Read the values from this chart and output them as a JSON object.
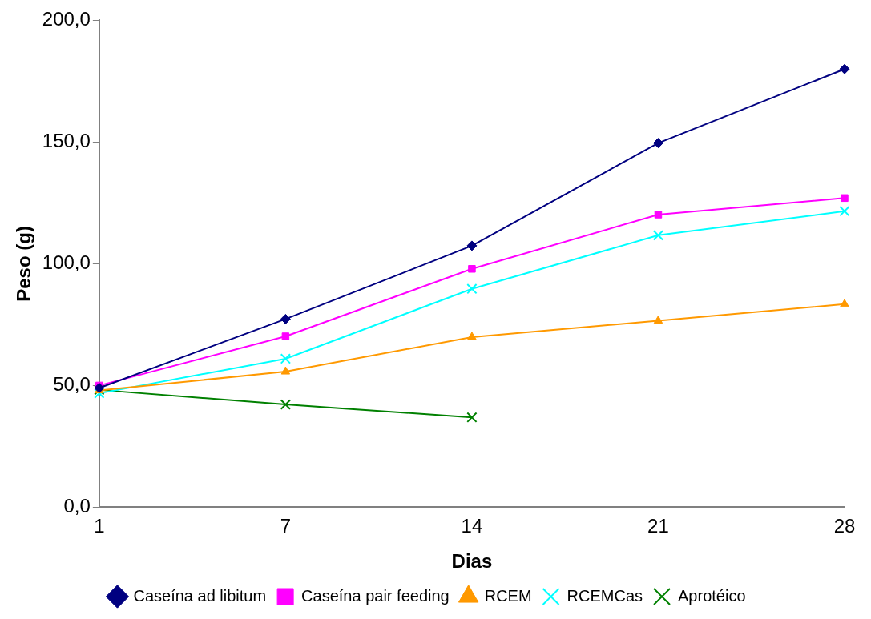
{
  "chart_data": {
    "type": "line",
    "xlabel": "Dias",
    "ylabel": "Peso (g)",
    "categories": [
      "1",
      "7",
      "14",
      "21",
      "28"
    ],
    "series": [
      {
        "name": "Caseína ad libitum",
        "color": "#000080",
        "marker": "diamond",
        "values": [
          49,
          77.3,
          107.4,
          149.6,
          180
        ]
      },
      {
        "name": "Caseína pair feeding",
        "color": "#ff00ff",
        "marker": "square",
        "values": [
          50,
          70.2,
          97.9,
          120.2,
          127
        ]
      },
      {
        "name": "RCEM",
        "color": "#ff9900",
        "marker": "triangle",
        "values": [
          48,
          55.7,
          69.9,
          76.6,
          83.4
        ]
      },
      {
        "name": "RCEMCas",
        "color": "#00ffff",
        "marker": "cross",
        "values": [
          46.8,
          61,
          89.7,
          111.7,
          121.6
        ]
      },
      {
        "name": "Aprotéico",
        "color": "#008000",
        "marker": "cross",
        "values": [
          48.2,
          42.2,
          36.9,
          null,
          null
        ]
      }
    ],
    "ylim": [
      0,
      200
    ],
    "yticks": [
      {
        "value": 0,
        "label": "0,0"
      },
      {
        "value": 50,
        "label": "50,0"
      },
      {
        "value": 100,
        "label": "100,0"
      },
      {
        "value": 150,
        "label": "150,0"
      },
      {
        "value": 200,
        "label": "200,0"
      }
    ],
    "grid": false,
    "legend": "bottom",
    "line_style": "solid"
  }
}
